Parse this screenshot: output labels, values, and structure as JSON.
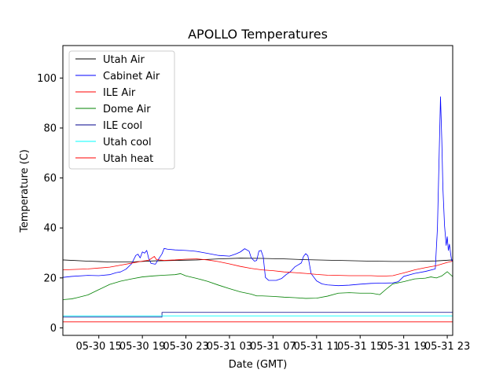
{
  "chart_data": {
    "type": "line",
    "title": "APOLLO Temperatures",
    "xlabel": "Date (GMT)",
    "ylabel": "Temperature (C)",
    "x_unit": "hours since 05-30 00:00 GMT",
    "xlim": [
      11.7,
      47.5
    ],
    "ylim": [
      -3,
      113
    ],
    "grid": false,
    "legend_position": "upper-left",
    "xticks": [
      {
        "x": 15,
        "label": "05-30 15"
      },
      {
        "x": 19,
        "label": "05-30 19"
      },
      {
        "x": 23,
        "label": "05-30 23"
      },
      {
        "x": 27,
        "label": "05-31 03"
      },
      {
        "x": 31,
        "label": "05-31 07"
      },
      {
        "x": 35,
        "label": "05-31 11"
      },
      {
        "x": 39,
        "label": "05-31 15"
      },
      {
        "x": 43,
        "label": "05-31 19"
      },
      {
        "x": 47,
        "label": "05-31 23"
      }
    ],
    "yticks": [
      0,
      20,
      40,
      60,
      80,
      100
    ],
    "series": [
      {
        "name": "Utah Air",
        "color": "#000000",
        "points": [
          [
            11.7,
            27.2
          ],
          [
            14,
            26.7
          ],
          [
            16,
            26.4
          ],
          [
            18,
            26.4
          ],
          [
            20,
            26.8
          ],
          [
            22,
            27.0
          ],
          [
            24,
            27.2
          ],
          [
            26,
            27.6
          ],
          [
            28,
            27.9
          ],
          [
            30,
            27.8
          ],
          [
            32,
            27.6
          ],
          [
            34,
            27.3
          ],
          [
            36,
            27.1
          ],
          [
            38,
            26.9
          ],
          [
            40,
            26.7
          ],
          [
            42,
            26.6
          ],
          [
            44,
            26.6
          ],
          [
            46,
            26.8
          ],
          [
            47.5,
            27.2
          ]
        ]
      },
      {
        "name": "Cabinet Air",
        "color": "#0000ff",
        "points": [
          [
            11.7,
            20.2
          ],
          [
            12.5,
            20.6
          ],
          [
            14,
            21.0
          ],
          [
            15,
            20.9
          ],
          [
            16,
            21.3
          ],
          [
            16.6,
            22.1
          ],
          [
            17,
            22.4
          ],
          [
            17.5,
            23.5
          ],
          [
            18,
            25.6
          ],
          [
            18.4,
            29.0
          ],
          [
            18.6,
            29.5
          ],
          [
            18.8,
            28.0
          ],
          [
            19,
            30.4
          ],
          [
            19.2,
            29.9
          ],
          [
            19.4,
            31.0
          ],
          [
            19.6,
            27.5
          ],
          [
            19.8,
            25.8
          ],
          [
            20.2,
            25.5
          ],
          [
            20.5,
            27.6
          ],
          [
            20.8,
            29.6
          ],
          [
            21,
            31.8
          ],
          [
            21.3,
            31.5
          ],
          [
            22,
            31.2
          ],
          [
            23,
            31.0
          ],
          [
            23.6,
            30.8
          ],
          [
            24,
            30.6
          ],
          [
            24.5,
            30.2
          ],
          [
            25,
            29.8
          ],
          [
            26,
            29.0
          ],
          [
            27,
            28.7
          ],
          [
            27.6,
            29.6
          ],
          [
            28,
            30.4
          ],
          [
            28.4,
            31.7
          ],
          [
            28.8,
            30.7
          ],
          [
            29,
            28.0
          ],
          [
            29.3,
            26.7
          ],
          [
            29.5,
            27.0
          ],
          [
            29.7,
            30.7
          ],
          [
            29.9,
            31.0
          ],
          [
            30.1,
            28.4
          ],
          [
            30.3,
            20.2
          ],
          [
            30.6,
            19.0
          ],
          [
            31.3,
            19.0
          ],
          [
            31.8,
            19.8
          ],
          [
            32.2,
            21.3
          ],
          [
            32.6,
            22.5
          ],
          [
            33.0,
            24.4
          ],
          [
            33.3,
            25.2
          ],
          [
            33.6,
            26.0
          ],
          [
            33.8,
            28.6
          ],
          [
            34.0,
            29.7
          ],
          [
            34.2,
            28.9
          ],
          [
            34.5,
            21.7
          ],
          [
            35,
            18.8
          ],
          [
            35.5,
            17.6
          ],
          [
            36,
            17.2
          ],
          [
            37,
            16.9
          ],
          [
            38,
            17.1
          ],
          [
            39,
            17.5
          ],
          [
            40,
            17.8
          ],
          [
            41,
            17.9
          ],
          [
            42,
            18.0
          ],
          [
            42.5,
            18.5
          ],
          [
            43,
            20.6
          ],
          [
            44,
            21.8
          ],
          [
            45,
            22.6
          ],
          [
            45.9,
            23.6
          ],
          [
            46.1,
            40.0
          ],
          [
            46.25,
            68.0
          ],
          [
            46.38,
            92.5
          ],
          [
            46.5,
            75.0
          ],
          [
            46.6,
            56.0
          ],
          [
            46.75,
            41.0
          ],
          [
            46.9,
            33.0
          ],
          [
            47.0,
            36.5
          ],
          [
            47.1,
            31.0
          ],
          [
            47.2,
            33.5
          ],
          [
            47.3,
            30.0
          ],
          [
            47.4,
            27.0
          ],
          [
            47.5,
            26.6
          ]
        ]
      },
      {
        "name": "ILE Air",
        "color": "#ff0000",
        "points": [
          [
            11.7,
            23.2
          ],
          [
            14,
            23.6
          ],
          [
            16,
            24.3
          ],
          [
            17,
            25.1
          ],
          [
            18,
            25.9
          ],
          [
            19,
            26.7
          ],
          [
            19.6,
            27.1
          ],
          [
            20.1,
            28.6
          ],
          [
            20.3,
            27.3
          ],
          [
            21,
            27.0
          ],
          [
            22,
            27.2
          ],
          [
            23,
            27.5
          ],
          [
            24,
            27.6
          ],
          [
            25,
            27.2
          ],
          [
            26,
            26.5
          ],
          [
            27,
            25.6
          ],
          [
            28,
            24.6
          ],
          [
            29,
            23.8
          ],
          [
            30,
            23.2
          ],
          [
            31,
            22.9
          ],
          [
            32,
            22.4
          ],
          [
            33,
            22.1
          ],
          [
            34,
            21.8
          ],
          [
            35,
            21.4
          ],
          [
            36,
            21.1
          ],
          [
            37,
            21.0
          ],
          [
            38,
            20.9
          ],
          [
            39,
            20.9
          ],
          [
            40,
            20.9
          ],
          [
            41,
            20.7
          ],
          [
            42,
            20.9
          ],
          [
            43,
            22.0
          ],
          [
            44,
            23.2
          ],
          [
            45,
            24.1
          ],
          [
            46,
            24.9
          ],
          [
            47,
            26.2
          ],
          [
            47.5,
            26.7
          ]
        ]
      },
      {
        "name": "Dome Air",
        "color": "#008000",
        "points": [
          [
            11.7,
            11.3
          ],
          [
            12.5,
            11.6
          ],
          [
            13,
            12.1
          ],
          [
            14,
            13.2
          ],
          [
            15,
            15.3
          ],
          [
            16,
            17.4
          ],
          [
            17,
            18.7
          ],
          [
            18,
            19.6
          ],
          [
            19,
            20.4
          ],
          [
            20,
            20.8
          ],
          [
            21,
            21.1
          ],
          [
            22,
            21.3
          ],
          [
            22.5,
            21.7
          ],
          [
            23,
            20.8
          ],
          [
            24,
            19.8
          ],
          [
            25,
            18.6
          ],
          [
            26,
            17.1
          ],
          [
            27,
            15.7
          ],
          [
            28,
            14.4
          ],
          [
            29,
            13.5
          ],
          [
            29.5,
            12.8
          ],
          [
            30,
            12.8
          ],
          [
            31,
            12.6
          ],
          [
            32,
            12.3
          ],
          [
            33,
            12.1
          ],
          [
            34,
            11.8
          ],
          [
            35,
            11.9
          ],
          [
            36,
            12.7
          ],
          [
            37,
            13.9
          ],
          [
            38,
            14.1
          ],
          [
            39,
            13.9
          ],
          [
            40,
            13.9
          ],
          [
            40.8,
            13.3
          ],
          [
            41.5,
            15.9
          ],
          [
            42,
            17.6
          ],
          [
            43,
            18.5
          ],
          [
            44,
            19.6
          ],
          [
            45,
            19.9
          ],
          [
            45.5,
            20.4
          ],
          [
            46,
            20.0
          ],
          [
            46.5,
            20.8
          ],
          [
            47,
            22.5
          ],
          [
            47.5,
            20.5
          ]
        ]
      },
      {
        "name": "ILE cool",
        "color": "#00008b",
        "points": [
          [
            11.7,
            4.3
          ],
          [
            20.8,
            4.3
          ],
          [
            20.8,
            6.2
          ],
          [
            47.5,
            6.2
          ]
        ]
      },
      {
        "name": "Utah cool",
        "color": "#00ffff",
        "points": [
          [
            11.7,
            4.8
          ],
          [
            47.5,
            4.8
          ]
        ]
      },
      {
        "name": "Utah heat",
        "color": "#ff0000",
        "points": [
          [
            11.7,
            2.4
          ],
          [
            47.5,
            2.4
          ]
        ]
      }
    ]
  }
}
